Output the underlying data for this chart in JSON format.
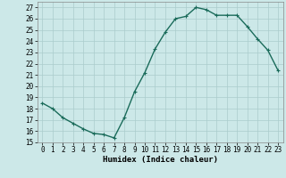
{
  "x": [
    0,
    1,
    2,
    3,
    4,
    5,
    6,
    7,
    8,
    9,
    10,
    11,
    12,
    13,
    14,
    15,
    16,
    17,
    18,
    19,
    20,
    21,
    22,
    23
  ],
  "y": [
    18.5,
    18.0,
    17.2,
    16.7,
    16.2,
    15.8,
    15.7,
    15.4,
    17.2,
    19.5,
    21.2,
    23.3,
    24.8,
    26.0,
    26.2,
    27.0,
    26.8,
    26.3,
    26.3,
    26.3,
    25.3,
    24.2,
    23.2,
    21.4
  ],
  "line_color": "#1a6b5a",
  "marker": "+",
  "marker_size": 3,
  "linewidth": 1.0,
  "xlabel": "Humidex (Indice chaleur)",
  "xlim": [
    -0.5,
    23.5
  ],
  "ylim": [
    15,
    27.5
  ],
  "yticks": [
    15,
    16,
    17,
    18,
    19,
    20,
    21,
    22,
    23,
    24,
    25,
    26,
    27
  ],
  "xticks": [
    0,
    1,
    2,
    3,
    4,
    5,
    6,
    7,
    8,
    9,
    10,
    11,
    12,
    13,
    14,
    15,
    16,
    17,
    18,
    19,
    20,
    21,
    22,
    23
  ],
  "bg_color": "#cce8e8",
  "grid_color": "#aacccc",
  "label_fontsize": 6.5,
  "tick_fontsize": 5.5
}
